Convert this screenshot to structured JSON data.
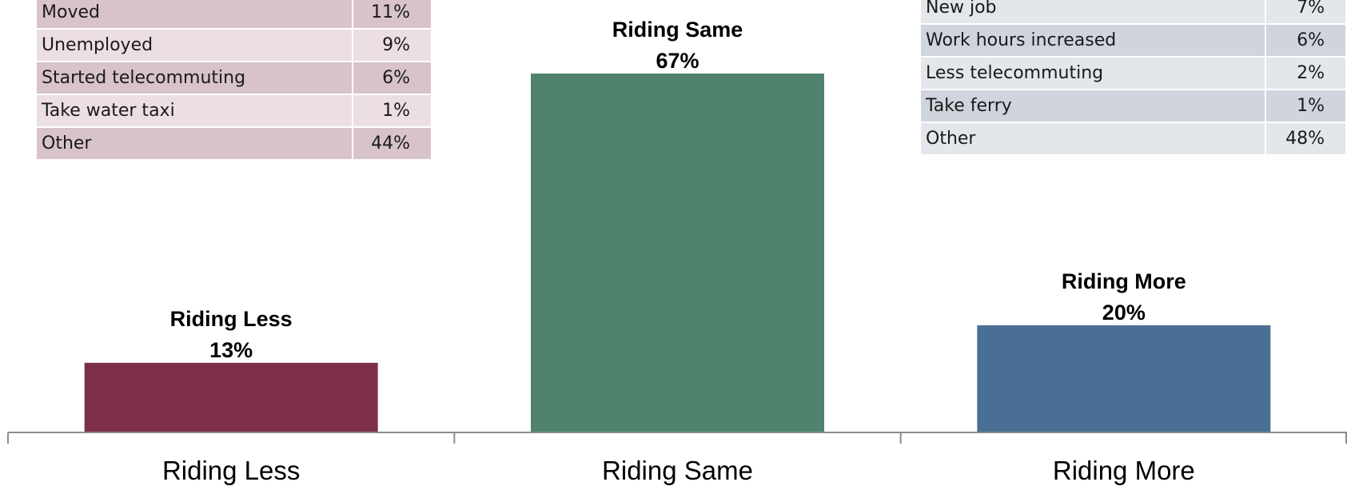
{
  "riding_less_reasons": {
    "rows": [
      {
        "reason": "Moved",
        "pct": "11%"
      },
      {
        "reason": "Unemployed",
        "pct": "9%"
      },
      {
        "reason": "Started telecommuting",
        "pct": "6%"
      },
      {
        "reason": "Take water taxi",
        "pct": "1%"
      },
      {
        "reason": "Other",
        "pct": "44%"
      }
    ]
  },
  "riding_more_reasons": {
    "rows": [
      {
        "reason": "New job",
        "pct": "7%"
      },
      {
        "reason": "Work hours increased",
        "pct": "6%"
      },
      {
        "reason": "Less telecommuting",
        "pct": "2%"
      },
      {
        "reason": "Take ferry",
        "pct": "1%"
      },
      {
        "reason": "Other",
        "pct": "48%"
      }
    ]
  },
  "chart_data": {
    "type": "bar",
    "categories": [
      "Riding Less",
      "Riding Same",
      "Riding More"
    ],
    "values": [
      13,
      67,
      20
    ],
    "value_unit": "%",
    "colors": [
      "#7d2f4a",
      "#4f836e",
      "#4a6f94"
    ],
    "title": "",
    "xlabel": "",
    "ylabel": "",
    "ylim": [
      0,
      67
    ],
    "grid": false,
    "legend": "none",
    "data_labels": [
      "Riding Less",
      "Riding Same",
      "Riding More"
    ]
  }
}
